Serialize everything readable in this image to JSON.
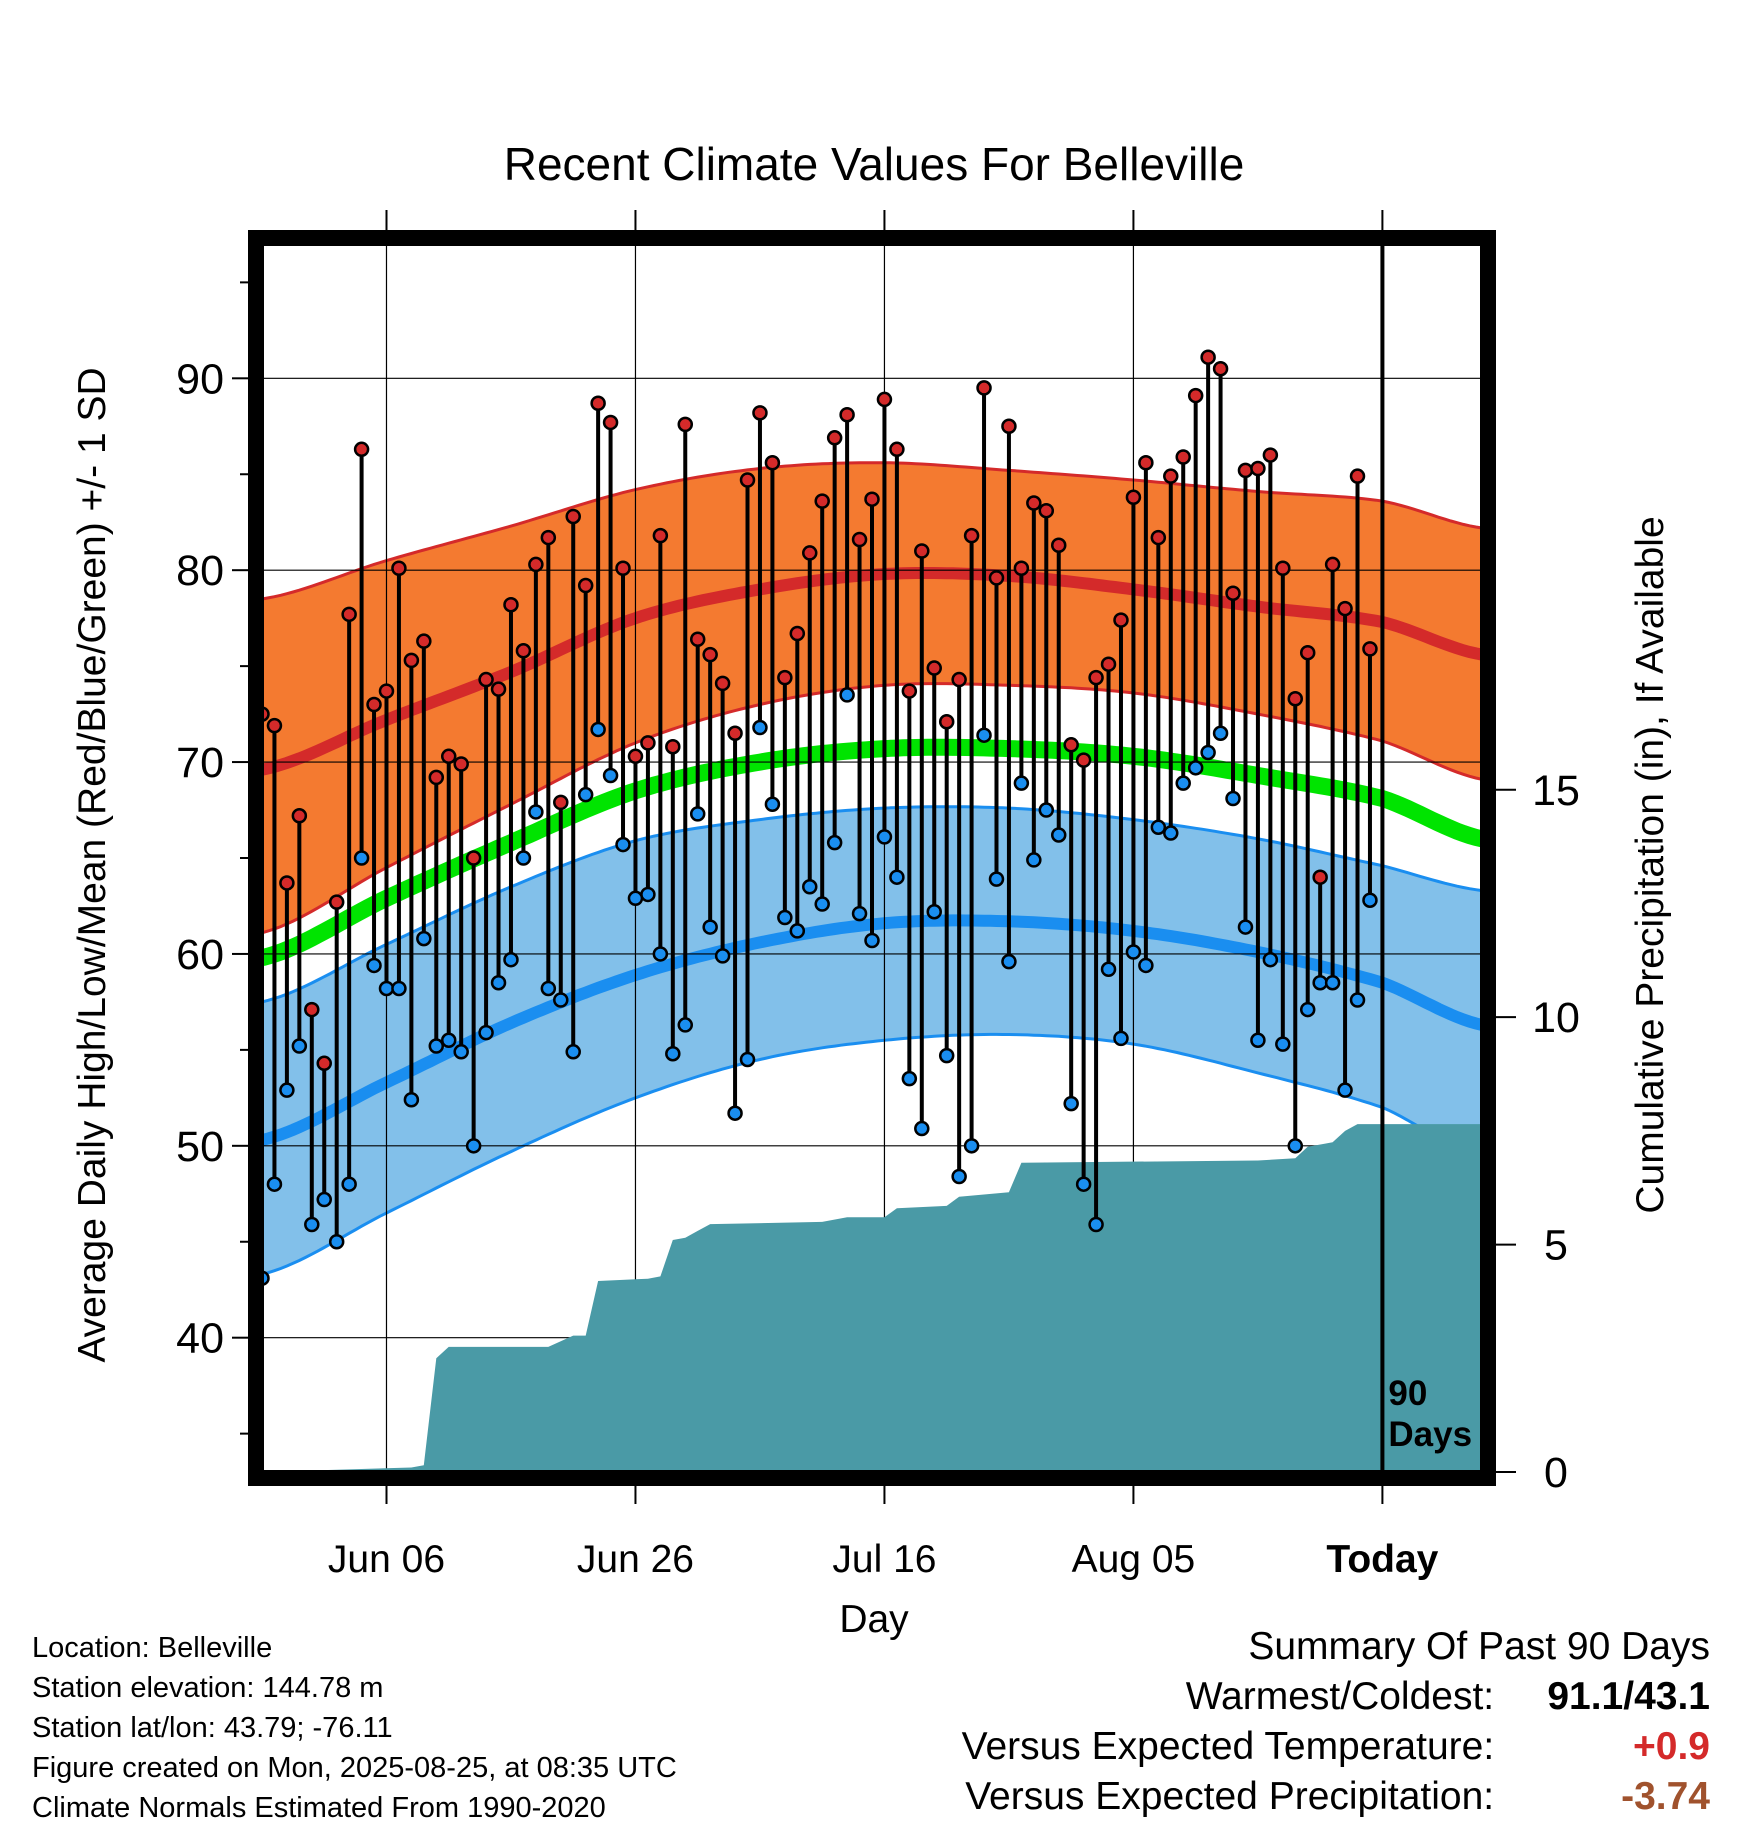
{
  "chart_data": {
    "type": "line",
    "title": "Recent Climate Values For Belleville",
    "xlabel": "Day",
    "ylabel": "Average Daily High/Low/Mean (Red/Blue/Green) +/- 1 SD",
    "y2label": "Cumulative Precipitation (in), If Available",
    "ylim": [
      33,
      97
    ],
    "y2lim": [
      0,
      27
    ],
    "xlim_days": [
      -89,
      9
    ],
    "x_ticks": [
      {
        "day": -79,
        "label": "Jun 06"
      },
      {
        "day": -59,
        "label": "Jun 26"
      },
      {
        "day": -39,
        "label": "Jul 16"
      },
      {
        "day": -19,
        "label": "Aug 05"
      },
      {
        "day": 1,
        "label": "Today"
      }
    ],
    "y_ticks": [
      40,
      50,
      60,
      70,
      80,
      90
    ],
    "y2_ticks": [
      0,
      5,
      10,
      15
    ],
    "grid": true,
    "today_marker_label": [
      "90",
      "Days"
    ],
    "normals": {
      "high_mean": [
        [
          -89,
          69.6
        ],
        [
          -79,
          72.2
        ],
        [
          -69,
          74.7
        ],
        [
          -59,
          77.5
        ],
        [
          -49,
          79.0
        ],
        [
          -39,
          79.8
        ],
        [
          -29,
          79.7
        ],
        [
          -19,
          79.0
        ],
        [
          -9,
          78.1
        ],
        [
          1,
          77.3
        ],
        [
          9,
          75.6
        ]
      ],
      "high_upper": [
        [
          -89,
          78.5
        ],
        [
          -79,
          80.5
        ],
        [
          -69,
          82.3
        ],
        [
          -59,
          84.2
        ],
        [
          -49,
          85.3
        ],
        [
          -39,
          85.6
        ],
        [
          -29,
          85.2
        ],
        [
          -19,
          84.7
        ],
        [
          -9,
          84.1
        ],
        [
          1,
          83.6
        ],
        [
          9,
          82.2
        ]
      ],
      "high_lower": [
        [
          -89,
          61.1
        ],
        [
          -79,
          64.5
        ],
        [
          -69,
          67.8
        ],
        [
          -59,
          71.0
        ],
        [
          -49,
          73.0
        ],
        [
          -39,
          74.0
        ],
        [
          -29,
          74.0
        ],
        [
          -19,
          73.6
        ],
        [
          -9,
          72.5
        ],
        [
          1,
          71.1
        ],
        [
          9,
          69.1
        ]
      ],
      "mean": [
        [
          -89,
          59.8
        ],
        [
          -79,
          62.9
        ],
        [
          -69,
          65.8
        ],
        [
          -59,
          68.5
        ],
        [
          -49,
          70.0
        ],
        [
          -39,
          70.7
        ],
        [
          -29,
          70.7
        ],
        [
          -19,
          70.3
        ],
        [
          -9,
          69.3
        ],
        [
          1,
          68.1
        ],
        [
          9,
          66.0
        ]
      ],
      "low_mean": [
        [
          -89,
          50.3
        ],
        [
          -79,
          53.3
        ],
        [
          -69,
          56.4
        ],
        [
          -59,
          58.9
        ],
        [
          -49,
          60.6
        ],
        [
          -39,
          61.6
        ],
        [
          -29,
          61.7
        ],
        [
          -19,
          61.2
        ],
        [
          -9,
          60.1
        ],
        [
          1,
          58.5
        ],
        [
          9,
          56.3
        ]
      ],
      "low_upper": [
        [
          -89,
          57.5
        ],
        [
          -79,
          60.5
        ],
        [
          -69,
          63.5
        ],
        [
          -59,
          65.9
        ],
        [
          -49,
          67.0
        ],
        [
          -39,
          67.6
        ],
        [
          -29,
          67.6
        ],
        [
          -19,
          67.0
        ],
        [
          -9,
          66.0
        ],
        [
          1,
          64.6
        ],
        [
          9,
          63.3
        ]
      ],
      "low_lower": [
        [
          -89,
          43.3
        ],
        [
          -79,
          46.5
        ],
        [
          -69,
          49.7
        ],
        [
          -59,
          52.5
        ],
        [
          -49,
          54.5
        ],
        [
          -39,
          55.5
        ],
        [
          -29,
          55.8
        ],
        [
          -19,
          55.3
        ],
        [
          -9,
          53.8
        ],
        [
          1,
          52.0
        ],
        [
          9,
          49.4
        ]
      ]
    },
    "daily_highs": [
      72.5,
      71.9,
      63.7,
      67.2,
      57.1,
      54.3,
      62.7,
      77.7,
      86.3,
      73.0,
      73.7,
      80.1,
      75.3,
      76.3,
      69.2,
      70.3,
      69.9,
      65.0,
      74.3,
      73.8,
      78.2,
      75.8,
      80.3,
      81.7,
      67.9,
      82.8,
      79.2,
      88.7,
      87.7,
      80.1,
      70.3,
      71.0,
      81.8,
      70.8,
      87.6,
      76.4,
      75.6,
      74.1,
      71.5,
      84.7,
      88.2,
      85.6,
      74.4,
      76.7,
      80.9,
      83.6,
      86.9,
      88.1,
      81.6,
      83.7,
      88.9,
      86.3,
      73.7,
      81.0,
      74.9,
      72.1,
      74.3,
      81.8,
      89.5,
      79.6,
      87.5,
      80.1,
      83.5,
      83.1,
      81.3,
      70.9,
      70.1,
      74.4,
      75.1,
      77.4,
      83.8,
      85.6,
      81.7,
      84.9,
      85.9,
      89.1,
      91.1,
      90.5,
      78.8,
      85.2,
      85.3,
      86.0,
      80.1,
      73.3,
      75.7,
      64.0,
      80.3,
      78.0,
      84.9,
      75.9
    ],
    "daily_lows": [
      43.1,
      48.0,
      52.9,
      55.2,
      45.9,
      47.2,
      45.0,
      48.0,
      65.0,
      59.4,
      58.2,
      58.2,
      52.4,
      60.8,
      55.2,
      55.5,
      54.9,
      50.0,
      55.9,
      58.5,
      59.7,
      65.0,
      67.4,
      58.2,
      57.6,
      54.9,
      68.3,
      71.7,
      69.3,
      65.7,
      62.9,
      63.1,
      60.0,
      54.8,
      56.3,
      67.3,
      61.4,
      59.9,
      51.7,
      54.5,
      71.8,
      67.8,
      61.9,
      61.2,
      63.5,
      62.6,
      65.8,
      73.5,
      62.1,
      60.7,
      66.1,
      64.0,
      53.5,
      50.9,
      62.2,
      54.7,
      48.4,
      50.0,
      71.4,
      63.9,
      59.6,
      68.9,
      64.9,
      67.5,
      66.2,
      52.2,
      48.0,
      45.9,
      59.2,
      55.6,
      60.1,
      59.4,
      66.6,
      66.3,
      68.9,
      69.7,
      70.5,
      71.5,
      68.1,
      61.4,
      55.5,
      59.7,
      55.3,
      50.0,
      57.1,
      58.5,
      58.5,
      52.9,
      57.6,
      62.8
    ],
    "cumulative_precip": [
      [
        -89,
        0
      ],
      [
        -77,
        0.1
      ],
      [
        -76,
        0.15
      ],
      [
        -75,
        2.5
      ],
      [
        -74,
        2.75
      ],
      [
        -66,
        2.75
      ],
      [
        -64,
        3.0
      ],
      [
        -63,
        3.0
      ],
      [
        -62,
        4.2
      ],
      [
        -58,
        4.25
      ],
      [
        -57,
        4.3
      ],
      [
        -56,
        5.1
      ],
      [
        -55,
        5.15
      ],
      [
        -54,
        5.3
      ],
      [
        -53,
        5.45
      ],
      [
        -44,
        5.5
      ],
      [
        -42,
        5.6
      ],
      [
        -39,
        5.6
      ],
      [
        -38,
        5.8
      ],
      [
        -34,
        5.85
      ],
      [
        -33,
        6.05
      ],
      [
        -29,
        6.15
      ],
      [
        -28,
        6.8
      ],
      [
        -9,
        6.85
      ],
      [
        -6,
        6.9
      ],
      [
        -5,
        7.15
      ],
      [
        -3,
        7.25
      ],
      [
        -2,
        7.5
      ],
      [
        -1,
        7.65
      ],
      [
        9,
        7.65
      ]
    ]
  },
  "info": {
    "location": "Location: Belleville",
    "elevation": "Station elevation: 144.78 m",
    "latlon": "Station lat/lon: 43.79; -76.11",
    "created": "Figure created on Mon, 2025-08-25, at 08:35 UTC",
    "normals": "Climate Normals Estimated From 1990-2020"
  },
  "summary": {
    "title": "Summary Of Past 90 Days",
    "warmest_label": "Warmest/Coldest:",
    "warmest_value": "91.1/43.1",
    "temp_label": "Versus Expected Temperature:",
    "temp_value": "+0.9",
    "precip_label": "Versus Expected Precipitation:",
    "precip_value": "-3.74"
  },
  "colors": {
    "high_band": "#f47a30",
    "high_line": "#d42a2a",
    "low_band": "#82c0ea",
    "low_line": "#1a8ef0",
    "mean_line": "#00e400",
    "precip_fill": "#4a9aa6",
    "high_dot": "#d42a2a",
    "low_dot": "#1a8ef0"
  }
}
